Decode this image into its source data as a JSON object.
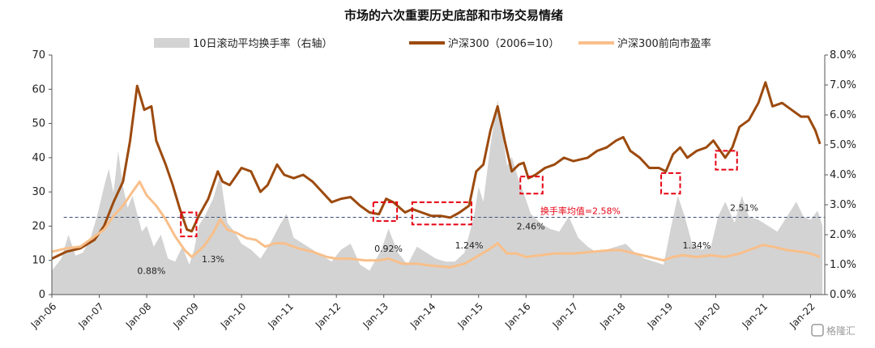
{
  "chart_data": {
    "type": "line",
    "title": "市场的六次重要历史底部和市场交易情绪",
    "legend": {
      "placement": "top",
      "entries": [
        {
          "label": "10日滚动平均换手率（右轴）",
          "color": "#d3d3d3",
          "kind": "area"
        },
        {
          "label": "沪深300（2006=10）",
          "color": "#9c4a0e",
          "kind": "line"
        },
        {
          "label": "沪深300前向市盈率",
          "color": "#f8bf8a",
          "kind": "line"
        }
      ]
    },
    "x_range": [
      2006.0,
      2022.3
    ],
    "y_left": {
      "min": 0,
      "max": 70,
      "ticks": [
        0,
        10,
        20,
        30,
        40,
        50,
        60,
        70
      ]
    },
    "y_right": {
      "min": 0,
      "max": 8,
      "ticks": [
        "0.0%",
        "1.0%",
        "2.0%",
        "3.0%",
        "4.0%",
        "5.0%",
        "6.0%",
        "7.0%",
        "8.0%"
      ]
    },
    "x_ticks": [
      {
        "label": "Jan-06",
        "t": 2006
      },
      {
        "label": "Jan-07",
        "t": 2007
      },
      {
        "label": "Jan-08",
        "t": 2008
      },
      {
        "label": "Jan-09",
        "t": 2009
      },
      {
        "label": "Jan-10",
        "t": 2010
      },
      {
        "label": "Jan-11",
        "t": 2011
      },
      {
        "label": "Jan-12",
        "t": 2012
      },
      {
        "label": "Jan-13",
        "t": 2013
      },
      {
        "label": "Jan-14",
        "t": 2014
      },
      {
        "label": "Jan-15",
        "t": 2015
      },
      {
        "label": "Jan-16",
        "t": 2016
      },
      {
        "label": "Jan-17",
        "t": 2017
      },
      {
        "label": "Jan-18",
        "t": 2018
      },
      {
        "label": "Jan-19",
        "t": 2019
      },
      {
        "label": "Jan-20",
        "t": 2020
      },
      {
        "label": "Jan-21",
        "t": 2021
      },
      {
        "label": "Jan-22",
        "t": 2022
      }
    ],
    "mean_turnover": {
      "value": 2.58,
      "label": "换手率均值=2.58%"
    },
    "series": [
      {
        "name": "沪深300（2006=10）",
        "axis": "left",
        "color": "#9c4a0e",
        "points": [
          [
            2006.0,
            10.5
          ],
          [
            2006.3,
            12.5
          ],
          [
            2006.6,
            13.5
          ],
          [
            2006.9,
            16
          ],
          [
            2007.1,
            20
          ],
          [
            2007.3,
            27
          ],
          [
            2007.5,
            33
          ],
          [
            2007.65,
            45
          ],
          [
            2007.8,
            61
          ],
          [
            2007.95,
            54
          ],
          [
            2008.1,
            55
          ],
          [
            2008.2,
            45
          ],
          [
            2008.4,
            38
          ],
          [
            2008.55,
            32
          ],
          [
            2008.7,
            25
          ],
          [
            2008.85,
            19
          ],
          [
            2008.95,
            18.5
          ],
          [
            2009.1,
            23
          ],
          [
            2009.3,
            28
          ],
          [
            2009.5,
            36
          ],
          [
            2009.6,
            33
          ],
          [
            2009.75,
            32
          ],
          [
            2009.9,
            35
          ],
          [
            2010.0,
            37
          ],
          [
            2010.2,
            36
          ],
          [
            2010.4,
            30
          ],
          [
            2010.55,
            32
          ],
          [
            2010.75,
            38
          ],
          [
            2010.9,
            35
          ],
          [
            2011.1,
            34
          ],
          [
            2011.3,
            35
          ],
          [
            2011.5,
            33
          ],
          [
            2011.7,
            30
          ],
          [
            2011.9,
            27
          ],
          [
            2012.1,
            28
          ],
          [
            2012.3,
            28.5
          ],
          [
            2012.5,
            26
          ],
          [
            2012.7,
            24
          ],
          [
            2012.9,
            23.5
          ],
          [
            2013.05,
            28
          ],
          [
            2013.2,
            27
          ],
          [
            2013.45,
            24
          ],
          [
            2013.6,
            25
          ],
          [
            2013.8,
            24
          ],
          [
            2014.0,
            23
          ],
          [
            2014.2,
            23
          ],
          [
            2014.4,
            22.5
          ],
          [
            2014.6,
            24
          ],
          [
            2014.8,
            26
          ],
          [
            2014.95,
            36
          ],
          [
            2015.1,
            38
          ],
          [
            2015.25,
            48
          ],
          [
            2015.4,
            55
          ],
          [
            2015.55,
            45
          ],
          [
            2015.7,
            36
          ],
          [
            2015.85,
            38
          ],
          [
            2015.95,
            38.5
          ],
          [
            2016.05,
            34
          ],
          [
            2016.2,
            35
          ],
          [
            2016.4,
            37
          ],
          [
            2016.6,
            38
          ],
          [
            2016.8,
            40
          ],
          [
            2017.0,
            39
          ],
          [
            2017.3,
            40
          ],
          [
            2017.5,
            42
          ],
          [
            2017.7,
            43
          ],
          [
            2017.9,
            45
          ],
          [
            2018.05,
            46
          ],
          [
            2018.2,
            42
          ],
          [
            2018.4,
            40
          ],
          [
            2018.6,
            37
          ],
          [
            2018.8,
            37
          ],
          [
            2018.95,
            36
          ],
          [
            2019.1,
            41
          ],
          [
            2019.25,
            43
          ],
          [
            2019.4,
            40
          ],
          [
            2019.6,
            42
          ],
          [
            2019.8,
            43
          ],
          [
            2019.95,
            45
          ],
          [
            2020.1,
            42
          ],
          [
            2020.2,
            40
          ],
          [
            2020.35,
            43
          ],
          [
            2020.5,
            49
          ],
          [
            2020.7,
            51
          ],
          [
            2020.9,
            56
          ],
          [
            2021.05,
            62
          ],
          [
            2021.2,
            55
          ],
          [
            2021.4,
            56
          ],
          [
            2021.6,
            54
          ],
          [
            2021.8,
            52
          ],
          [
            2021.95,
            52
          ],
          [
            2022.1,
            48
          ],
          [
            2022.2,
            44
          ]
        ]
      },
      {
        "name": "沪深300前向市盈率",
        "axis": "left",
        "color": "#f8bf8a",
        "points": [
          [
            2006.0,
            12.5
          ],
          [
            2006.3,
            13.5
          ],
          [
            2006.6,
            14
          ],
          [
            2006.9,
            17
          ],
          [
            2007.1,
            19
          ],
          [
            2007.3,
            23
          ],
          [
            2007.5,
            26
          ],
          [
            2007.7,
            30
          ],
          [
            2007.85,
            33
          ],
          [
            2008.0,
            29
          ],
          [
            2008.2,
            26
          ],
          [
            2008.4,
            22
          ],
          [
            2008.6,
            17
          ],
          [
            2008.8,
            13
          ],
          [
            2008.95,
            11
          ],
          [
            2009.2,
            14
          ],
          [
            2009.4,
            18
          ],
          [
            2009.55,
            22
          ],
          [
            2009.7,
            19
          ],
          [
            2009.9,
            18
          ],
          [
            2010.1,
            16.5
          ],
          [
            2010.3,
            16
          ],
          [
            2010.5,
            14
          ],
          [
            2010.7,
            15
          ],
          [
            2010.9,
            15
          ],
          [
            2011.2,
            13.5
          ],
          [
            2011.5,
            12.5
          ],
          [
            2011.8,
            11
          ],
          [
            2012.0,
            10.5
          ],
          [
            2012.3,
            10.5
          ],
          [
            2012.6,
            10
          ],
          [
            2012.9,
            10
          ],
          [
            2013.1,
            10.5
          ],
          [
            2013.4,
            9
          ],
          [
            2013.7,
            9
          ],
          [
            2014.0,
            8.5
          ],
          [
            2014.4,
            8
          ],
          [
            2014.7,
            9
          ],
          [
            2014.95,
            11
          ],
          [
            2015.2,
            13
          ],
          [
            2015.4,
            15
          ],
          [
            2015.6,
            12
          ],
          [
            2015.8,
            12
          ],
          [
            2016.0,
            11
          ],
          [
            2016.3,
            11.5
          ],
          [
            2016.6,
            12
          ],
          [
            2017.0,
            12
          ],
          [
            2017.4,
            12.5
          ],
          [
            2017.8,
            13
          ],
          [
            2018.0,
            13
          ],
          [
            2018.3,
            12
          ],
          [
            2018.6,
            11
          ],
          [
            2018.9,
            10
          ],
          [
            2019.1,
            11
          ],
          [
            2019.3,
            11.5
          ],
          [
            2019.6,
            11
          ],
          [
            2019.9,
            11.5
          ],
          [
            2020.2,
            11
          ],
          [
            2020.5,
            12
          ],
          [
            2020.8,
            13.5
          ],
          [
            2021.0,
            14.5
          ],
          [
            2021.2,
            14
          ],
          [
            2021.5,
            13
          ],
          [
            2021.8,
            12.5
          ],
          [
            2022.0,
            12
          ],
          [
            2022.2,
            11
          ]
        ]
      },
      {
        "name": "10日滚动平均换手率（右轴）",
        "axis": "right",
        "color": "#d3d3d3",
        "points": [
          [
            2006.0,
            0.8
          ],
          [
            2006.2,
            1.2
          ],
          [
            2006.35,
            2.0
          ],
          [
            2006.5,
            1.3
          ],
          [
            2006.65,
            1.4
          ],
          [
            2006.8,
            1.8
          ],
          [
            2006.95,
            2.6
          ],
          [
            2007.1,
            3.6
          ],
          [
            2007.2,
            4.2
          ],
          [
            2007.3,
            3.4
          ],
          [
            2007.4,
            4.8
          ],
          [
            2007.5,
            3.6
          ],
          [
            2007.6,
            2.9
          ],
          [
            2007.7,
            3.3
          ],
          [
            2007.8,
            2.7
          ],
          [
            2007.9,
            2.1
          ],
          [
            2008.0,
            2.3
          ],
          [
            2008.15,
            1.6
          ],
          [
            2008.3,
            2.0
          ],
          [
            2008.45,
            1.2
          ],
          [
            2008.6,
            1.1
          ],
          [
            2008.75,
            1.6
          ],
          [
            2008.9,
            1.0
          ],
          [
            2009.0,
            1.5
          ],
          [
            2009.1,
            2.3
          ],
          [
            2009.25,
            2.7
          ],
          [
            2009.4,
            3.2
          ],
          [
            2009.55,
            4.0
          ],
          [
            2009.7,
            2.4
          ],
          [
            2009.85,
            2.1
          ],
          [
            2010.0,
            1.7
          ],
          [
            2010.2,
            1.5
          ],
          [
            2010.4,
            1.2
          ],
          [
            2010.6,
            1.7
          ],
          [
            2010.8,
            2.3
          ],
          [
            2010.95,
            2.7
          ],
          [
            2011.1,
            1.9
          ],
          [
            2011.3,
            1.7
          ],
          [
            2011.5,
            1.5
          ],
          [
            2011.7,
            1.3
          ],
          [
            2011.9,
            1.1
          ],
          [
            2012.1,
            1.5
          ],
          [
            2012.3,
            1.7
          ],
          [
            2012.5,
            1.0
          ],
          [
            2012.7,
            0.8
          ],
          [
            2012.95,
            1.5
          ],
          [
            2013.1,
            2.2
          ],
          [
            2013.3,
            1.4
          ],
          [
            2013.5,
            1.0
          ],
          [
            2013.7,
            1.6
          ],
          [
            2013.9,
            1.4
          ],
          [
            2014.1,
            1.2
          ],
          [
            2014.3,
            1.1
          ],
          [
            2014.5,
            1.1
          ],
          [
            2014.7,
            1.4
          ],
          [
            2014.9,
            2.6
          ],
          [
            2015.0,
            3.6
          ],
          [
            2015.1,
            3.1
          ],
          [
            2015.25,
            5.0
          ],
          [
            2015.4,
            6.5
          ],
          [
            2015.5,
            5.4
          ],
          [
            2015.6,
            4.3
          ],
          [
            2015.7,
            4.6
          ],
          [
            2015.85,
            3.8
          ],
          [
            2015.95,
            3.4
          ],
          [
            2016.1,
            2.7
          ],
          [
            2016.3,
            2.4
          ],
          [
            2016.5,
            2.2
          ],
          [
            2016.7,
            2.1
          ],
          [
            2016.9,
            2.6
          ],
          [
            2017.1,
            1.9
          ],
          [
            2017.3,
            1.6
          ],
          [
            2017.5,
            1.4
          ],
          [
            2017.7,
            1.5
          ],
          [
            2017.9,
            1.6
          ],
          [
            2018.1,
            1.7
          ],
          [
            2018.3,
            1.4
          ],
          [
            2018.5,
            1.2
          ],
          [
            2018.7,
            1.1
          ],
          [
            2018.9,
            1.0
          ],
          [
            2019.05,
            2.2
          ],
          [
            2019.2,
            3.3
          ],
          [
            2019.35,
            2.6
          ],
          [
            2019.5,
            1.7
          ],
          [
            2019.7,
            1.5
          ],
          [
            2019.9,
            1.6
          ],
          [
            2020.05,
            2.6
          ],
          [
            2020.2,
            3.1
          ],
          [
            2020.4,
            2.4
          ],
          [
            2020.55,
            3.3
          ],
          [
            2020.7,
            2.6
          ],
          [
            2020.9,
            2.5
          ],
          [
            2021.1,
            2.3
          ],
          [
            2021.3,
            2.1
          ],
          [
            2021.5,
            2.6
          ],
          [
            2021.7,
            3.1
          ],
          [
            2021.85,
            2.6
          ],
          [
            2022.0,
            2.5
          ],
          [
            2022.15,
            2.8
          ],
          [
            2022.25,
            2.3
          ]
        ]
      }
    ],
    "bottoms": [
      {
        "t0": 2008.72,
        "t1": 2009.05,
        "y0": 17,
        "y1": 24
      },
      {
        "t0": 2012.78,
        "t1": 2013.28,
        "y0": 21.5,
        "y1": 27
      },
      {
        "t0": 2013.6,
        "t1": 2014.85,
        "y0": 20.5,
        "y1": 27
      },
      {
        "t0": 2015.88,
        "t1": 2016.35,
        "y0": 29.5,
        "y1": 34.5
      },
      {
        "t0": 2018.85,
        "t1": 2019.25,
        "y0": 29.5,
        "y1": 35.5
      },
      {
        "t0": 2020.0,
        "t1": 2020.45,
        "y0": 36.5,
        "y1": 42
      }
    ],
    "annotations": [
      {
        "text": "0.88%",
        "t": 2008.1,
        "y": 6
      },
      {
        "text": "1.3%",
        "t": 2009.4,
        "y": 9.5
      },
      {
        "text": "0.92%",
        "t": 2013.1,
        "y": 12.5
      },
      {
        "text": "1.24%",
        "t": 2014.8,
        "y": 13.5
      },
      {
        "text": "2.46%",
        "t": 2016.1,
        "y": 19
      },
      {
        "text": "1.34%",
        "t": 2019.6,
        "y": 13.5
      },
      {
        "text": "2.51%",
        "t": 2020.6,
        "y": 24.5
      }
    ]
  },
  "watermark": {
    "text": "格隆汇"
  }
}
